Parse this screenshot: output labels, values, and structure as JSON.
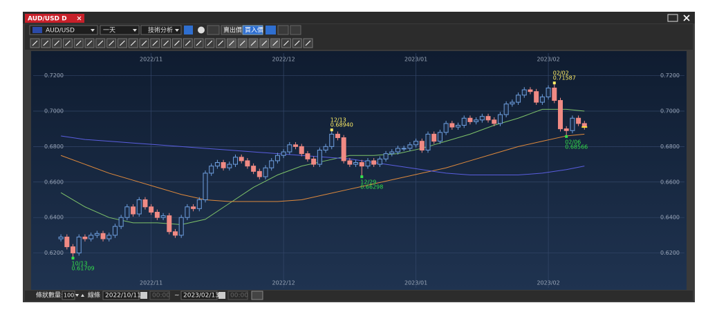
{
  "window": {
    "tab": "AUD/USD D"
  },
  "toolbar": {
    "symbol": "AUD/USD",
    "period": "一天",
    "analysis": "技術分析",
    "sell": "賣出價",
    "buy": "買入價"
  },
  "chart_data": {
    "type": "candlestick",
    "xlim": [
      -3,
      98.8
    ],
    "ylim": [
      0.607,
      0.7315
    ],
    "grid": true,
    "xticks": [
      {
        "value": 15,
        "label": "2022/11"
      },
      {
        "value": 37,
        "label": "2022/12"
      },
      {
        "value": 59,
        "label": "2023/01"
      },
      {
        "value": 81,
        "label": "2023/02"
      }
    ],
    "yticks": [
      {
        "value": 0.62,
        "label": "0.6200"
      },
      {
        "value": 0.64,
        "label": "0.6400"
      },
      {
        "value": 0.66,
        "label": "0.6600"
      },
      {
        "value": 0.68,
        "label": "0.6800"
      },
      {
        "value": 0.7,
        "label": "0.7000"
      },
      {
        "value": 0.72,
        "label": "0.7200"
      }
    ],
    "up_color": "#6fa0e0",
    "down_color": "#f08a84",
    "open": [
      0.628,
      0.629,
      0.6235,
      0.62,
      0.629,
      0.628,
      0.63,
      0.631,
      0.628,
      0.63,
      0.635,
      0.64,
      0.646,
      0.642,
      0.65,
      0.646,
      0.643,
      0.64,
      0.641,
      0.632,
      0.63,
      0.64,
      0.646,
      0.645,
      0.65,
      0.665,
      0.669,
      0.671,
      0.668,
      0.67,
      0.674,
      0.672,
      0.669,
      0.666,
      0.663,
      0.668,
      0.672,
      0.675,
      0.677,
      0.681,
      0.68,
      0.676,
      0.673,
      0.67,
      0.678,
      0.68,
      0.687,
      0.685,
      0.672,
      0.67,
      0.671,
      0.669,
      0.672,
      0.67,
      0.673,
      0.676,
      0.677,
      0.679,
      0.679,
      0.681,
      0.683,
      0.678,
      0.687,
      0.683,
      0.688,
      0.693,
      0.691,
      0.692,
      0.696,
      0.694,
      0.695,
      0.697,
      0.695,
      0.693,
      0.698,
      0.704,
      0.705,
      0.709,
      0.712,
      0.711,
      0.705,
      0.708,
      0.713,
      0.706,
      0.69,
      0.689,
      0.696,
      0.693
    ],
    "high": [
      0.6305,
      0.6305,
      0.625,
      0.6305,
      0.6305,
      0.6315,
      0.6325,
      0.6325,
      0.6315,
      0.6365,
      0.6415,
      0.6475,
      0.6475,
      0.6515,
      0.6515,
      0.6475,
      0.6445,
      0.6425,
      0.6425,
      0.6335,
      0.6415,
      0.6475,
      0.6475,
      0.6515,
      0.6665,
      0.6705,
      0.6725,
      0.6725,
      0.6715,
      0.6755,
      0.6755,
      0.6735,
      0.6705,
      0.6675,
      0.6695,
      0.6735,
      0.6765,
      0.6785,
      0.6825,
      0.6825,
      0.6815,
      0.6775,
      0.6745,
      0.6795,
      0.6815,
      0.6894,
      0.6885,
      0.6865,
      0.6735,
      0.6725,
      0.6725,
      0.6735,
      0.6735,
      0.6745,
      0.6775,
      0.6785,
      0.6805,
      0.6805,
      0.6825,
      0.6845,
      0.6845,
      0.6885,
      0.6885,
      0.6895,
      0.6945,
      0.6945,
      0.6935,
      0.6975,
      0.6975,
      0.6965,
      0.6985,
      0.6985,
      0.6965,
      0.6995,
      0.7055,
      0.7065,
      0.7105,
      0.7135,
      0.7135,
      0.7125,
      0.7095,
      0.7145,
      0.71587,
      0.7075,
      0.6915,
      0.6975,
      0.6975,
      0.6945
    ],
    "low": [
      0.6265,
      0.622,
      0.61709,
      0.6185,
      0.6265,
      0.6265,
      0.6285,
      0.6265,
      0.6265,
      0.6285,
      0.6335,
      0.6385,
      0.6405,
      0.6405,
      0.6445,
      0.6415,
      0.6385,
      0.6385,
      0.6305,
      0.6285,
      0.6285,
      0.6385,
      0.6435,
      0.6435,
      0.6485,
      0.6635,
      0.6675,
      0.6665,
      0.6665,
      0.6685,
      0.6705,
      0.6675,
      0.6645,
      0.6615,
      0.6615,
      0.6665,
      0.6705,
      0.6735,
      0.6755,
      0.6785,
      0.6745,
      0.6715,
      0.6685,
      0.6685,
      0.6765,
      0.6785,
      0.6835,
      0.6705,
      0.6685,
      0.6685,
      0.66298,
      0.6675,
      0.6685,
      0.6685,
      0.6715,
      0.6745,
      0.6755,
      0.6775,
      0.6775,
      0.6795,
      0.6765,
      0.6765,
      0.6815,
      0.6815,
      0.6865,
      0.6895,
      0.6895,
      0.6905,
      0.6925,
      0.6925,
      0.6935,
      0.6935,
      0.6915,
      0.6915,
      0.6965,
      0.7025,
      0.7035,
      0.7075,
      0.7095,
      0.7035,
      0.7035,
      0.7065,
      0.7045,
      0.6885,
      0.68566,
      0.6875,
      0.6915,
      0.6895
    ],
    "close": [
      0.629,
      0.6235,
      0.62,
      0.629,
      0.628,
      0.63,
      0.631,
      0.628,
      0.63,
      0.635,
      0.64,
      0.646,
      0.642,
      0.65,
      0.646,
      0.643,
      0.64,
      0.641,
      0.632,
      0.63,
      0.64,
      0.646,
      0.645,
      0.65,
      0.665,
      0.669,
      0.671,
      0.668,
      0.67,
      0.674,
      0.672,
      0.669,
      0.666,
      0.663,
      0.668,
      0.672,
      0.675,
      0.677,
      0.681,
      0.68,
      0.676,
      0.673,
      0.67,
      0.678,
      0.68,
      0.687,
      0.685,
      0.672,
      0.67,
      0.671,
      0.669,
      0.672,
      0.67,
      0.673,
      0.676,
      0.677,
      0.679,
      0.679,
      0.681,
      0.683,
      0.678,
      0.687,
      0.683,
      0.688,
      0.693,
      0.691,
      0.692,
      0.696,
      0.694,
      0.695,
      0.697,
      0.695,
      0.693,
      0.698,
      0.704,
      0.705,
      0.709,
      0.712,
      0.711,
      0.705,
      0.708,
      0.713,
      0.706,
      0.69,
      0.689,
      0.696,
      0.693,
      0.691
    ],
    "last_color": "#ffe033",
    "series": [
      {
        "color": "#7fc46a",
        "x": [
          0,
          4,
          8,
          12,
          16,
          20,
          24,
          28,
          32,
          36,
          40,
          44,
          48,
          52,
          56,
          60,
          64,
          68,
          72,
          76,
          80,
          84,
          87
        ],
        "values": [
          0.654,
          0.646,
          0.64,
          0.637,
          0.637,
          0.636,
          0.639,
          0.648,
          0.657,
          0.664,
          0.669,
          0.672,
          0.675,
          0.675,
          0.676,
          0.679,
          0.683,
          0.687,
          0.692,
          0.696,
          0.701,
          0.701,
          0.7
        ]
      },
      {
        "color": "#e08a3c",
        "x": [
          0,
          4,
          8,
          12,
          16,
          20,
          24,
          28,
          32,
          36,
          40,
          44,
          48,
          52,
          56,
          60,
          64,
          68,
          72,
          76,
          80,
          84,
          87
        ],
        "values": [
          0.675,
          0.67,
          0.665,
          0.661,
          0.657,
          0.653,
          0.65,
          0.649,
          0.649,
          0.649,
          0.65,
          0.653,
          0.656,
          0.659,
          0.662,
          0.665,
          0.668,
          0.672,
          0.676,
          0.68,
          0.683,
          0.686,
          0.687
        ]
      },
      {
        "color": "#5a5ee0",
        "x": [
          0,
          4,
          8,
          12,
          16,
          20,
          24,
          28,
          32,
          36,
          40,
          44,
          48,
          52,
          56,
          60,
          64,
          68,
          72,
          76,
          80,
          84,
          87
        ],
        "values": [
          0.686,
          0.684,
          0.683,
          0.682,
          0.681,
          0.68,
          0.679,
          0.678,
          0.677,
          0.676,
          0.675,
          0.674,
          0.673,
          0.671,
          0.669,
          0.667,
          0.665,
          0.664,
          0.664,
          0.664,
          0.665,
          0.667,
          0.669
        ]
      }
    ],
    "annotations": [
      {
        "date": "10/13",
        "x": 2,
        "value": 0.61709,
        "label": "0.61709",
        "color": "#33e04a",
        "position": "below"
      },
      {
        "date": "12/13",
        "x": 45,
        "value": 0.6894,
        "label": "0.68940",
        "color": "#ffee66",
        "position": "above"
      },
      {
        "date": "12/29",
        "x": 50,
        "value": 0.66298,
        "label": "0.66298",
        "color": "#33e04a",
        "position": "below"
      },
      {
        "date": "02/02",
        "x": 82,
        "value": 0.71587,
        "label": "0.71587",
        "color": "#ffee66",
        "position": "above"
      },
      {
        "date": "02/06",
        "x": 84,
        "value": 0.68566,
        "label": "0.68566",
        "color": "#33e04a",
        "position": "below"
      }
    ]
  },
  "footer": {
    "bar_count_label": "條狀數量:",
    "bar_count": 100,
    "line": "線條",
    "from_date": "2022/10/11",
    "from_time": "00:00",
    "sep": "~",
    "to_date": "2023/02/13",
    "to_time": "00:00"
  }
}
